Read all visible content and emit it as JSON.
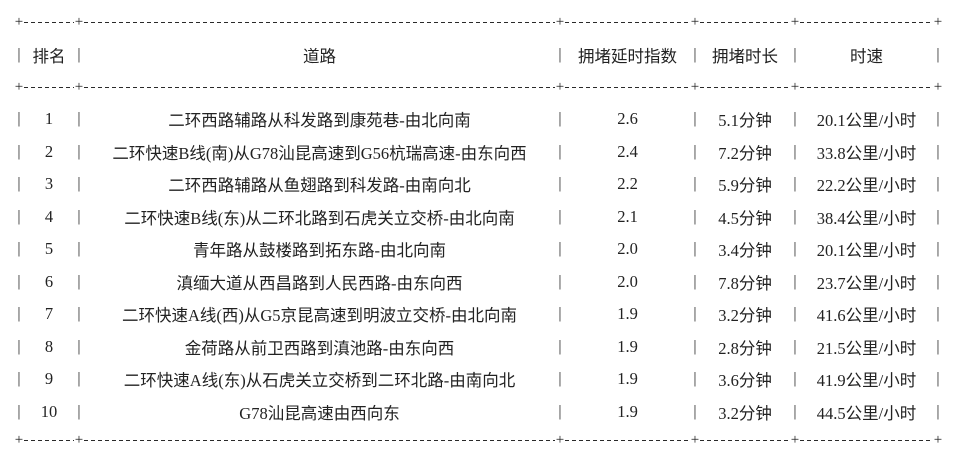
{
  "glyphs": {
    "corner": "+",
    "vertical": "|"
  },
  "chart_data": {
    "type": "table",
    "columns": [
      "排名",
      "道路",
      "拥堵延时指数",
      "拥堵时长",
      "时速"
    ],
    "rows": [
      {
        "rank": "1",
        "road": "二环西路辅路从科发路到康苑巷-由北向南",
        "delay_index": "2.6",
        "duration": "5.1分钟",
        "speed": "20.1公里/小时"
      },
      {
        "rank": "2",
        "road": "二环快速B线(南)从G78汕昆高速到G56杭瑞高速-由东向西",
        "delay_index": "2.4",
        "duration": "7.2分钟",
        "speed": "33.8公里/小时"
      },
      {
        "rank": "3",
        "road": "二环西路辅路从鱼翅路到科发路-由南向北",
        "delay_index": "2.2",
        "duration": "5.9分钟",
        "speed": "22.2公里/小时"
      },
      {
        "rank": "4",
        "road": "二环快速B线(东)从二环北路到石虎关立交桥-由北向南",
        "delay_index": "2.1",
        "duration": "4.5分钟",
        "speed": "38.4公里/小时"
      },
      {
        "rank": "5",
        "road": "青年路从鼓楼路到拓东路-由北向南",
        "delay_index": "2.0",
        "duration": "3.4分钟",
        "speed": "20.1公里/小时"
      },
      {
        "rank": "6",
        "road": "滇缅大道从西昌路到人民西路-由东向西",
        "delay_index": "2.0",
        "duration": "7.8分钟",
        "speed": "23.7公里/小时"
      },
      {
        "rank": "7",
        "road": "二环快速A线(西)从G5京昆高速到明波立交桥-由北向南",
        "delay_index": "1.9",
        "duration": "3.2分钟",
        "speed": "41.6公里/小时"
      },
      {
        "rank": "8",
        "road": "金荷路从前卫西路到滇池路-由东向西",
        "delay_index": "1.9",
        "duration": "2.8分钟",
        "speed": "21.5公里/小时"
      },
      {
        "rank": "9",
        "road": "二环快速A线(东)从石虎关立交桥到二环北路-由南向北",
        "delay_index": "1.9",
        "duration": "3.6分钟",
        "speed": "41.9公里/小时"
      },
      {
        "rank": "10",
        "road": "G78汕昆高速由西向东",
        "delay_index": "1.9",
        "duration": "3.2分钟",
        "speed": "44.5公里/小时"
      }
    ]
  }
}
